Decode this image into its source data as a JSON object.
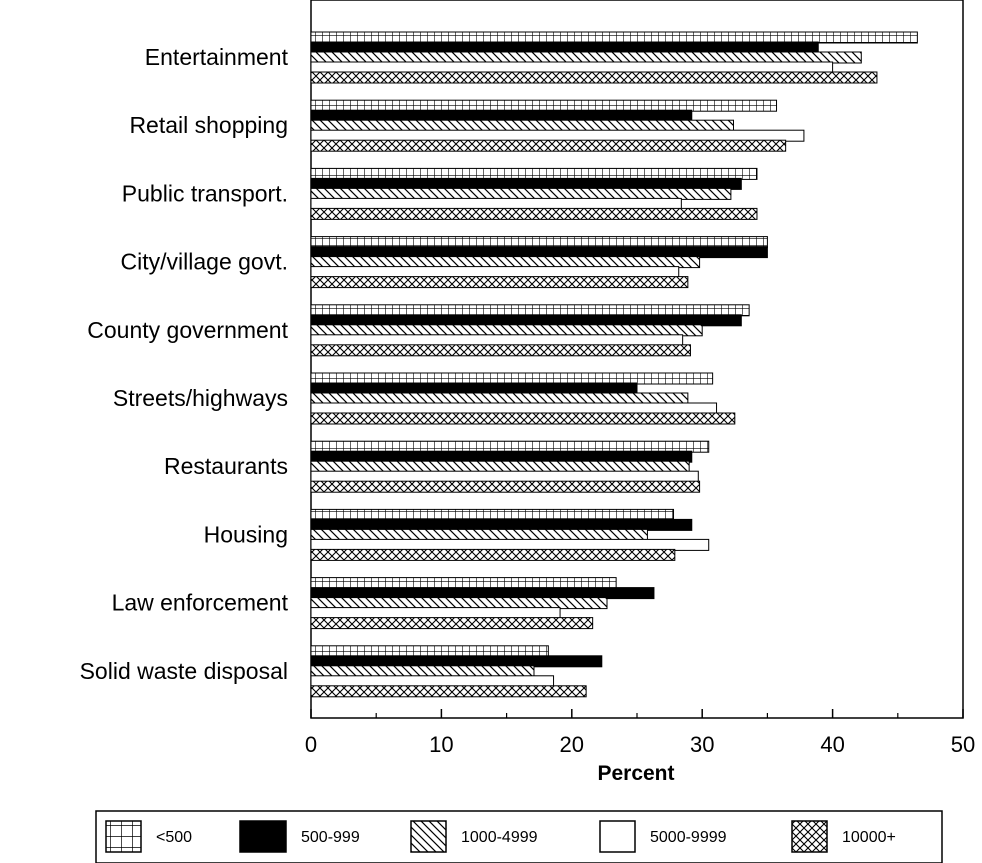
{
  "chart_data": {
    "type": "bar",
    "orientation": "horizontal",
    "categories": [
      "Entertainment",
      "Retail shopping",
      "Public transport.",
      "City/village govt.",
      "County government",
      "Streets/highways",
      "Restaurants",
      "Housing",
      "Law enforcement",
      "Solid waste disposal"
    ],
    "series": [
      {
        "name": "<500",
        "pattern": "grid",
        "values": [
          46.5,
          35.7,
          34.2,
          35.0,
          33.6,
          30.8,
          30.5,
          27.8,
          23.4,
          18.2
        ]
      },
      {
        "name": "500-999",
        "pattern": "solid",
        "values": [
          38.9,
          29.2,
          33.0,
          35.0,
          33.0,
          25.0,
          29.2,
          29.2,
          26.3,
          22.3
        ]
      },
      {
        "name": "1000-4999",
        "pattern": "diagonal",
        "values": [
          42.2,
          32.4,
          32.2,
          29.8,
          30.0,
          28.9,
          29.0,
          25.8,
          22.7,
          17.1
        ]
      },
      {
        "name": "5000-9999",
        "pattern": "white",
        "values": [
          40.0,
          37.8,
          28.4,
          28.2,
          28.5,
          31.1,
          29.7,
          30.5,
          19.1,
          18.6
        ]
      },
      {
        "name": "10000+",
        "pattern": "crosshatch",
        "values": [
          43.4,
          36.4,
          34.2,
          28.9,
          29.1,
          32.5,
          29.8,
          27.9,
          21.6,
          21.1
        ]
      }
    ],
    "xlim": [
      0,
      50
    ],
    "xticks": [
      "0",
      "10",
      "20",
      "30",
      "40",
      "50"
    ],
    "xlabel": "Percent",
    "ylabel": "",
    "title": "",
    "grid": false,
    "legend_position": "bottom"
  }
}
